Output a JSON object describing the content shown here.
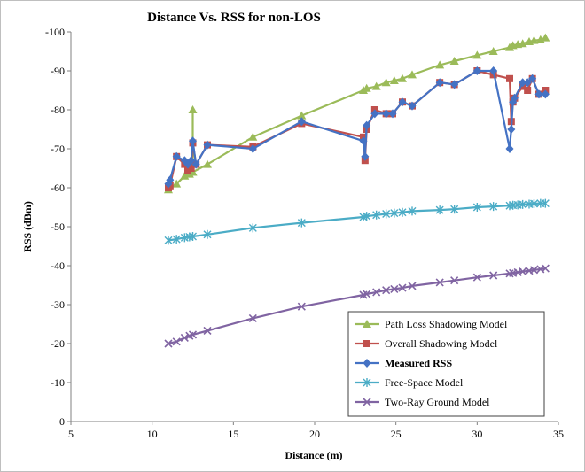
{
  "chart_data": {
    "type": "line",
    "title": "Distance Vs. RSS for non-LOS",
    "xlabel": "Distance (m)",
    "ylabel": "RSS (dBm)",
    "xlim": [
      5,
      35
    ],
    "ylim": [
      0,
      -100
    ],
    "xticks": [
      5,
      10,
      15,
      20,
      25,
      30,
      35
    ],
    "yticks": [
      0,
      -10,
      -20,
      -30,
      -40,
      -50,
      -60,
      -70,
      -80,
      -90,
      -100
    ],
    "grid": false,
    "legend_position": "bottom-right",
    "series": [
      {
        "name": "Path Loss Shadowing Model",
        "color": "#9bbb59",
        "marker": "triangle",
        "x": [
          11.0,
          11.5,
          12.0,
          12.3,
          12.5,
          12.5,
          12.5,
          13.4,
          16.2,
          19.2,
          23.0,
          23.2,
          23.8,
          24.4,
          24.9,
          25.4,
          26.0,
          27.7,
          28.6,
          30.0,
          31.0,
          32.0,
          32.2,
          32.5,
          32.8,
          33.2,
          33.5,
          33.9,
          34.2
        ],
        "y": [
          -59.5,
          -61,
          -63,
          -63.5,
          -64,
          -80,
          -64,
          -66,
          -73,
          -78.5,
          -85,
          -85.5,
          -86,
          -87,
          -87.5,
          -88,
          -89,
          -91.5,
          -92.5,
          -94,
          -95,
          -96,
          -96.5,
          -96.8,
          -97,
          -97.5,
          -97.8,
          -98,
          -98.5
        ]
      },
      {
        "name": "Overall Shadowing Model",
        "color": "#c0504d",
        "marker": "square",
        "x": [
          11.0,
          11.1,
          11.5,
          12.0,
          12.2,
          12.4,
          12.5,
          12.7,
          13.4,
          16.2,
          19.2,
          23.0,
          23.1,
          23.2,
          23.7,
          24.4,
          24.8,
          25.4,
          26.0,
          27.7,
          28.6,
          30.0,
          31.0,
          32.0,
          32.1,
          32.2,
          32.3,
          32.8,
          33.1,
          33.4,
          33.8,
          34.2
        ],
        "y": [
          -60,
          -60.5,
          -68,
          -66,
          -64.5,
          -65,
          -71.5,
          -66,
          -71,
          -70.5,
          -76.5,
          -73,
          -67,
          -75,
          -80,
          -79,
          -79,
          -82,
          -81,
          -87,
          -86.5,
          -90,
          -89,
          -88,
          -77,
          -82,
          -83,
          -86,
          -85,
          -88,
          -84,
          -85
        ]
      },
      {
        "name": "Measured RSS",
        "color": "#4472c4",
        "marker": "diamond",
        "x": [
          11.0,
          11.1,
          11.5,
          12.0,
          12.2,
          12.4,
          12.5,
          12.7,
          13.4,
          16.2,
          19.2,
          23.0,
          23.1,
          23.2,
          23.7,
          24.4,
          24.8,
          25.4,
          26.0,
          27.7,
          28.6,
          30.0,
          31.0,
          32.0,
          32.1,
          32.2,
          32.3,
          32.8,
          33.1,
          33.4,
          33.8,
          34.2
        ],
        "y": [
          -61,
          -62,
          -68,
          -67,
          -66,
          -67,
          -72,
          -66,
          -71,
          -70,
          -77,
          -72,
          -68,
          -76,
          -79,
          -79,
          -79,
          -82,
          -81,
          -87,
          -86.5,
          -90,
          -90,
          -70,
          -75,
          -82,
          -83,
          -87,
          -87,
          -88,
          -84,
          -84
        ]
      },
      {
        "name": "Free-Space Model",
        "color": "#4bacc6",
        "marker": "asterisk",
        "x": [
          11.0,
          11.5,
          12.0,
          12.3,
          12.5,
          13.4,
          16.2,
          19.2,
          23.0,
          23.2,
          23.8,
          24.4,
          24.9,
          25.4,
          26.0,
          27.7,
          28.6,
          30.0,
          31.0,
          32.0,
          32.2,
          32.5,
          32.8,
          33.2,
          33.5,
          33.9,
          34.2
        ],
        "y": [
          -46.5,
          -46.8,
          -47.2,
          -47.4,
          -47.5,
          -48,
          -49.7,
          -51,
          -52.5,
          -52.7,
          -53,
          -53.3,
          -53.5,
          -53.7,
          -54,
          -54.3,
          -54.5,
          -55,
          -55.2,
          -55.4,
          -55.5,
          -55.6,
          -55.7,
          -55.8,
          -55.9,
          -56,
          -56
        ]
      },
      {
        "name": "Two-Ray Ground Model",
        "color": "#8064a2",
        "marker": "x",
        "x": [
          11.0,
          11.5,
          12.0,
          12.3,
          12.5,
          13.4,
          16.2,
          19.2,
          23.0,
          23.2,
          23.8,
          24.4,
          24.9,
          25.4,
          26.0,
          27.7,
          28.6,
          30.0,
          31.0,
          32.0,
          32.2,
          32.5,
          32.8,
          33.2,
          33.5,
          33.9,
          34.2
        ],
        "y": [
          -20,
          -20.5,
          -21.5,
          -22,
          -22.3,
          -23.3,
          -26.5,
          -29.5,
          -32.5,
          -32.7,
          -33.2,
          -33.7,
          -34,
          -34.3,
          -34.8,
          -35.7,
          -36.2,
          -37,
          -37.5,
          -38,
          -38.1,
          -38.3,
          -38.5,
          -38.7,
          -38.9,
          -39.1,
          -39.3
        ]
      }
    ]
  }
}
